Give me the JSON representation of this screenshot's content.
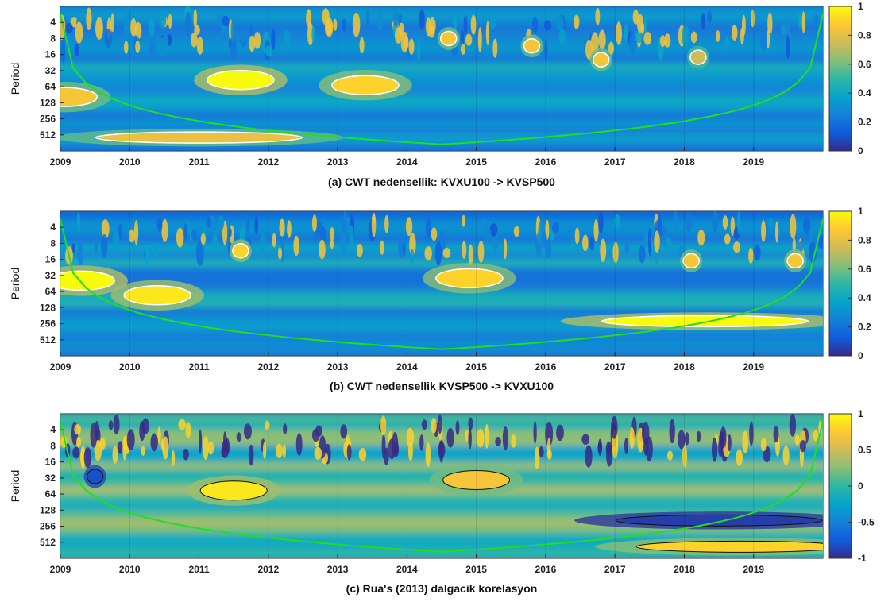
{
  "chart_data": [
    {
      "type": "heatmap",
      "title": "(a)  CWT nedensellik: KVXU100 -> KVSP500",
      "ylabel": "Period",
      "x_ticks": [
        "2009",
        "2010",
        "2011",
        "2012",
        "2013",
        "2014",
        "2015",
        "2016",
        "2017",
        "2018",
        "2019"
      ],
      "xlim": [
        2009,
        2020
      ],
      "y_ticks": [
        "4",
        "8",
        "16",
        "32",
        "64",
        "128",
        "256",
        "512"
      ],
      "ylim_period": [
        2,
        1024
      ],
      "y_scale": "log2",
      "colorbar_ticks": [
        "1",
        "0.8",
        "0.6",
        "0.4",
        "0.2",
        "0"
      ],
      "colorbar_range": [
        0,
        1
      ],
      "colormap": "parula",
      "hotspots": [
        {
          "t": 2011.6,
          "period": 48,
          "value": 1.0
        },
        {
          "t": 2013.4,
          "period": 60,
          "value": 0.9
        },
        {
          "t": 2009.05,
          "period": 100,
          "value": 0.85
        },
        {
          "t": 2011.0,
          "period": 575,
          "value": 0.82
        },
        {
          "t": 2015.8,
          "period": 11,
          "value": 0.85
        },
        {
          "t": 2016.8,
          "period": 20,
          "value": 0.85
        },
        {
          "t": 2014.6,
          "period": 8,
          "value": 0.85
        },
        {
          "t": 2018.2,
          "period": 18,
          "value": 0.75
        }
      ],
      "cone_of_influence_color": "#22dd22"
    },
    {
      "type": "heatmap",
      "title": "(b)  CWT nedensellik KVSP500 -> KVXU100",
      "ylabel": "Period",
      "x_ticks": [
        "2009",
        "2010",
        "2011",
        "2012",
        "2013",
        "2014",
        "2015",
        "2016",
        "2017",
        "2018",
        "2019"
      ],
      "xlim": [
        2009,
        2020
      ],
      "y_ticks": [
        "4",
        "8",
        "16",
        "32",
        "64",
        "128",
        "256",
        "512"
      ],
      "ylim_period": [
        2,
        1024
      ],
      "y_scale": "log2",
      "colorbar_ticks": [
        "1",
        "0.8",
        "0.6",
        "0.4",
        "0.2",
        "0"
      ],
      "colorbar_range": [
        0,
        1
      ],
      "colormap": "parula",
      "hotspots": [
        {
          "t": 2009.3,
          "period": 40,
          "value": 1.0
        },
        {
          "t": 2010.4,
          "period": 75,
          "value": 0.95
        },
        {
          "t": 2014.9,
          "period": 36,
          "value": 0.9
        },
        {
          "t": 2018.3,
          "period": 230,
          "value": 1.0
        },
        {
          "t": 2011.6,
          "period": 11,
          "value": 0.9
        },
        {
          "t": 2018.1,
          "period": 17,
          "value": 0.85
        },
        {
          "t": 2019.6,
          "period": 17,
          "value": 0.85
        }
      ],
      "cone_of_influence_color": "#22dd22"
    },
    {
      "type": "heatmap",
      "title": "(c) Rua's (2013) dalgacik korelasyon",
      "ylabel": "Period",
      "x_ticks": [
        "2009",
        "2010",
        "2011",
        "2012",
        "2013",
        "2014",
        "2015",
        "2016",
        "2017",
        "2018",
        "2019"
      ],
      "xlim": [
        2009,
        2020
      ],
      "y_ticks": [
        "4",
        "8",
        "16",
        "32",
        "64",
        "128",
        "256",
        "512"
      ],
      "ylim_period": [
        2,
        1024
      ],
      "y_scale": "log2",
      "colorbar_ticks": [
        "1",
        "0.5",
        "0",
        "-0.5",
        "-1"
      ],
      "colorbar_range": [
        -1,
        1
      ],
      "colormap": "parula",
      "contours": true,
      "hotspots": [
        {
          "t": 2011.5,
          "period": 55,
          "value": 0.9
        },
        {
          "t": 2015.0,
          "period": 35,
          "value": 0.7
        },
        {
          "t": 2018.5,
          "period": 200,
          "value": -0.9
        },
        {
          "t": 2018.8,
          "period": 620,
          "value": 0.8
        },
        {
          "t": 2009.5,
          "period": 30,
          "value": -0.8
        }
      ],
      "cone_of_influence_color": "#22dd22"
    }
  ]
}
